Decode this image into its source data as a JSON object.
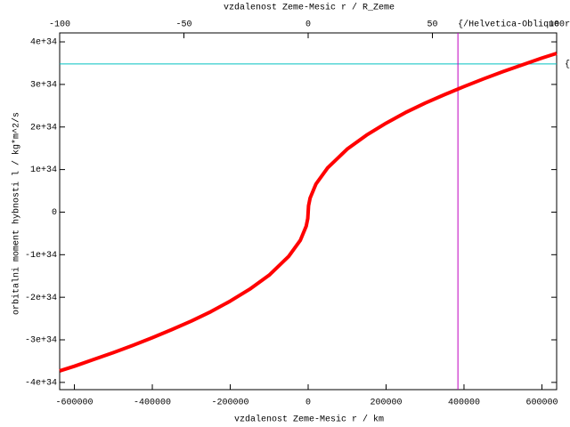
{
  "chart_data": {
    "type": "line",
    "xlabel": "vzdalenost Zeme-Mesic r / km",
    "x2label": "vzdalenost Zeme-Mesic r / R_Zeme",
    "ylabel": "orbitalni moment hybnosti l / kg*m^2/s",
    "xlim": [
      -637800,
      637800
    ],
    "xticks": [
      -600000,
      -400000,
      -200000,
      0,
      200000,
      400000,
      600000
    ],
    "x2lim": [
      -100,
      100
    ],
    "x2ticks": [
      -100,
      -50,
      0,
      50,
      100
    ],
    "ylim": [
      -4.17e+34,
      4.21e+34
    ],
    "yticks": [
      {
        "value": -4e+34,
        "label": "-4e+34"
      },
      {
        "value": -3e+34,
        "label": "-3e+34"
      },
      {
        "value": -2e+34,
        "label": "-2e+34"
      },
      {
        "value": -1e+34,
        "label": "-1e+34"
      },
      0,
      {
        "value": 1e+34,
        "label": "1e+34"
      },
      {
        "value": 2e+34,
        "label": "2e+34"
      },
      {
        "value": 3e+34,
        "label": "3e+34"
      },
      {
        "value": 4e+34,
        "label": "4e+34"
      }
    ],
    "series": [
      {
        "color": "#ff0000",
        "x": [
          -637800,
          -600000,
          -550000,
          -500000,
          -450000,
          -400000,
          -350000,
          -300000,
          -250000,
          -200000,
          -150000,
          -100000,
          -50000,
          -20000,
          -5000,
          -1000,
          0,
          1000,
          5000,
          20000,
          50000,
          100000,
          150000,
          200000,
          250000,
          300000,
          350000,
          400000,
          450000,
          500000,
          550000,
          600000,
          637800
        ],
        "values": [
          -3.73e+34,
          -3.62e+34,
          -3.46e+34,
          -3.3e+34,
          -3.13e+34,
          -2.95e+34,
          -2.76e+34,
          -2.56e+34,
          -2.34e+34,
          -2.09e+34,
          -1.81e+34,
          -1.48e+34,
          -1.04e+34,
          -6.6e+33,
          -3.3e+33,
          -1.5e+33,
          0,
          1.5e+33,
          3.3e+33,
          6.6e+33,
          1.04e+34,
          1.48e+34,
          1.81e+34,
          2.09e+34,
          2.34e+34,
          2.56e+34,
          2.76e+34,
          2.95e+34,
          3.13e+34,
          3.3e+34,
          3.46e+34,
          3.62e+34,
          3.73e+34
        ]
      }
    ],
    "hlines": [
      {
        "value": 3.48e+34,
        "color": "#00c0c0"
      }
    ],
    "vlines": [
      {
        "value": 384400,
        "color": "#c000c0"
      }
    ],
    "annotations": [
      "{/Helvetica-Oblique r}",
      "{"
    ]
  }
}
